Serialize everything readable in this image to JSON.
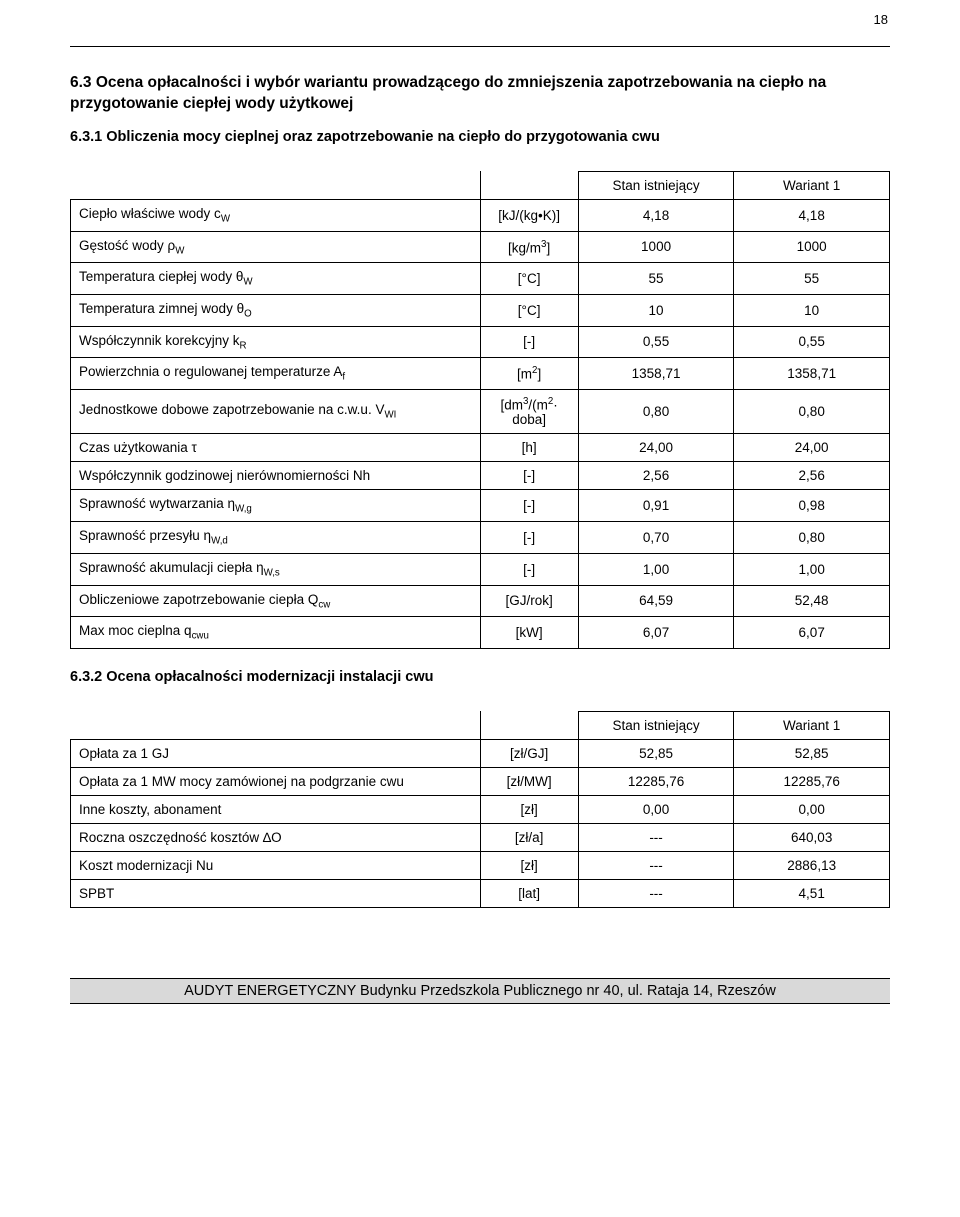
{
  "page_number": "18",
  "section_title": "6.3 Ocena opłacalności i wybór wariantu prowadzącego do zmniejszenia zapotrzebowania na ciepło na przygotowanie ciepłej wody użytkowej",
  "sub1_title": "6.3.1 Obliczenia mocy cieplnej oraz zapotrzebowanie na ciepło do przygotowania cwu",
  "sub2_title": "6.3.2 Ocena opłacalności modernizacji instalacji cwu",
  "table1": {
    "header": {
      "stan": "Stan istniejący",
      "war": "Wariant 1"
    },
    "rows": [
      {
        "label_html": "Ciepło właściwe wody c<sub>W</sub>",
        "unit_html": "[kJ/(kg•K)]",
        "v1": "4,18",
        "v2": "4,18"
      },
      {
        "label_html": "Gęstość wody ρ<sub>W</sub>",
        "unit_html": "[kg/m<sup>3</sup>]",
        "v1": "1000",
        "v2": "1000"
      },
      {
        "label_html": "Temperatura ciepłej wody θ<sub>W</sub>",
        "unit_html": "[°C]",
        "v1": "55",
        "v2": "55"
      },
      {
        "label_html": "Temperatura zimnej wody θ<sub>O</sub>",
        "unit_html": "[°C]",
        "v1": "10",
        "v2": "10"
      },
      {
        "label_html": "Współczynnik korekcyjny k<sub>R</sub>",
        "unit_html": "[-]",
        "v1": "0,55",
        "v2": "0,55"
      },
      {
        "label_html": "Powierzchnia o regulowanej temperaturze A<sub>f</sub>",
        "unit_html": "[m<sup>2</sup>]",
        "v1": "1358,71",
        "v2": "1358,71"
      },
      {
        "label_html": "Jednostkowe dobowe zapotrzebowanie na c.w.u. V<sub>WI</sub>",
        "unit_html": "[dm<sup>3</sup>/(m<sup>2</sup>·<br>doba]",
        "v1": "0,80",
        "v2": "0,80"
      },
      {
        "label_html": "Czas użytkowania τ",
        "unit_html": "[h]",
        "v1": "24,00",
        "v2": "24,00"
      },
      {
        "label_html": "Współczynnik godzinowej nierównomierności Nh",
        "unit_html": "[-]",
        "v1": "2,56",
        "v2": "2,56"
      },
      {
        "label_html": "Sprawność wytwarzania η<sub>W,g</sub>",
        "unit_html": "[-]",
        "v1": "0,91",
        "v2": "0,98"
      },
      {
        "label_html": "Sprawność przesyłu η<sub>W,d</sub>",
        "unit_html": "[-]",
        "v1": "0,70",
        "v2": "0,80"
      },
      {
        "label_html": "Sprawność akumulacji ciepła η<sub>W,s</sub>",
        "unit_html": "[-]",
        "v1": "1,00",
        "v2": "1,00"
      },
      {
        "label_html": "Obliczeniowe zapotrzebowanie ciepła Q<sub>cw</sub>",
        "unit_html": "[GJ/rok]",
        "v1": "64,59",
        "v2": "52,48"
      },
      {
        "label_html": "Max moc cieplna q<sub>cwu</sub>",
        "unit_html": "[kW]",
        "v1": "6,07",
        "v2": "6,07"
      }
    ]
  },
  "table2": {
    "header": {
      "stan": "Stan istniejący",
      "war": "Wariant 1"
    },
    "rows": [
      {
        "label_html": "Opłata za 1 GJ",
        "unit_html": "[zł/GJ]",
        "v1": "52,85",
        "v2": "52,85"
      },
      {
        "label_html": "Opłata za 1 MW mocy zamówionej na podgrzanie cwu",
        "unit_html": "[zł/MW]",
        "v1": "12285,76",
        "v2": "12285,76"
      },
      {
        "label_html": "Inne koszty, abonament",
        "unit_html": "[zł]",
        "v1": "0,00",
        "v2": "0,00"
      },
      {
        "label_html": "Roczna oszczędność kosztów ∆O",
        "unit_html": "[zł/a]",
        "v1": "---",
        "v2": "640,03"
      },
      {
        "label_html": "Koszt modernizacji Nu",
        "unit_html": "[zł]",
        "v1": "---",
        "v2": "2886,13"
      },
      {
        "label_html": "SPBT",
        "unit_html": "[lat]",
        "v1": "---",
        "v2": "4,51"
      }
    ]
  },
  "footer": "AUDYT ENERGETYCZNY Budynku Przedszkola Publicznego nr 40, ul. Rataja 14, Rzeszów",
  "colors": {
    "text": "#000000",
    "bg": "#ffffff",
    "footer_bg": "#d9d9d9",
    "border": "#000000"
  },
  "fontsizes": {
    "body": 13.5,
    "heading": 15.5,
    "subheading": 14.5,
    "pgnum": 13,
    "footer": 14.5
  }
}
